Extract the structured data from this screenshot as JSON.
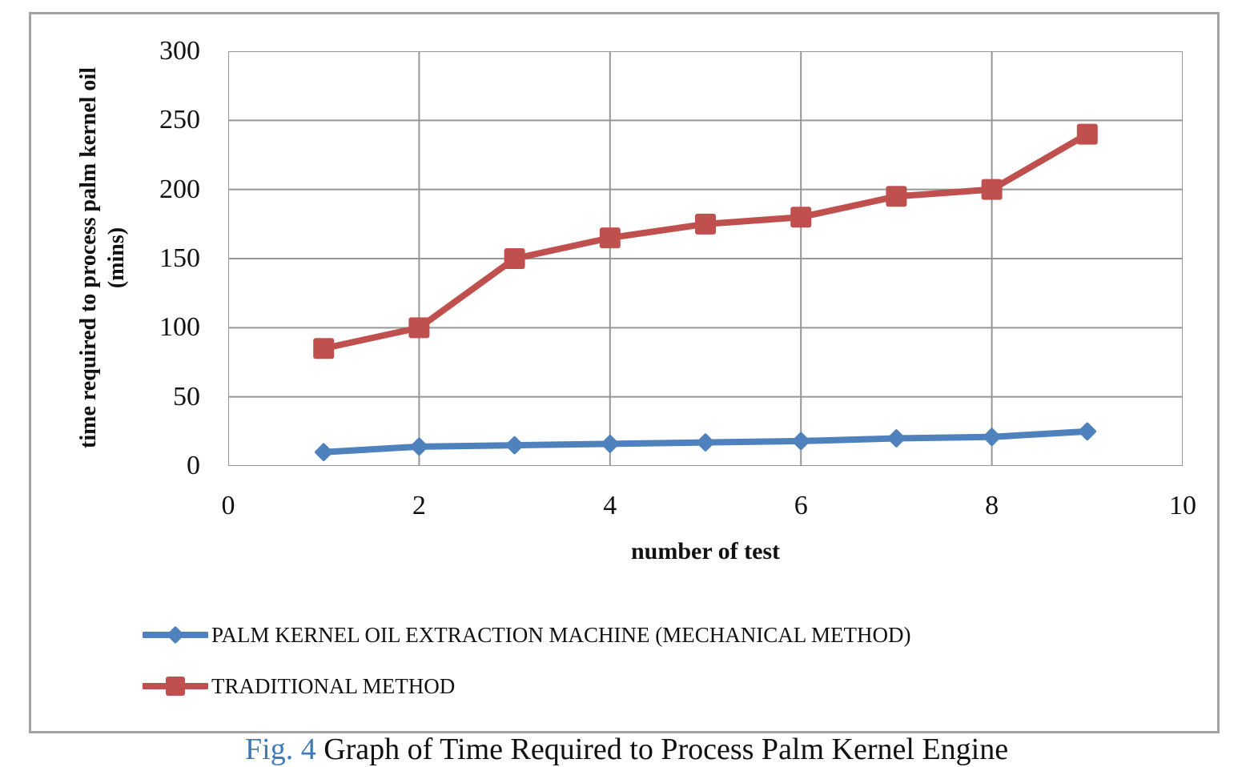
{
  "chart_data": {
    "type": "line",
    "xlabel": "number of test",
    "ylabel_line1": "time required to process palm kernel oil",
    "ylabel_line2": "(mins)",
    "x": [
      1,
      2,
      3,
      4,
      5,
      6,
      7,
      8,
      9
    ],
    "series": [
      {
        "name": "PALM KERNEL OIL EXTRACTION MACHINE (MECHANICAL METHOD)",
        "marker": "diamond",
        "color": "#4f81bd",
        "values": [
          10,
          14,
          15,
          16,
          17,
          18,
          20,
          21,
          25
        ]
      },
      {
        "name": "TRADITIONAL METHOD",
        "marker": "square",
        "color": "#c0504d",
        "values": [
          85,
          100,
          150,
          165,
          175,
          180,
          195,
          200,
          240
        ]
      }
    ],
    "xlim": [
      0,
      10
    ],
    "ylim": [
      0,
      300
    ],
    "xticks": [
      0,
      2,
      4,
      6,
      8,
      10
    ],
    "yticks": [
      0,
      50,
      100,
      150,
      200,
      250,
      300
    ],
    "grid": true,
    "gridline_color": "#979797",
    "legend_position": "bottom-left"
  },
  "caption": {
    "prefix": "Fig. 4",
    "text": "Graph of Time Required to Process Palm Kernel Engine"
  }
}
